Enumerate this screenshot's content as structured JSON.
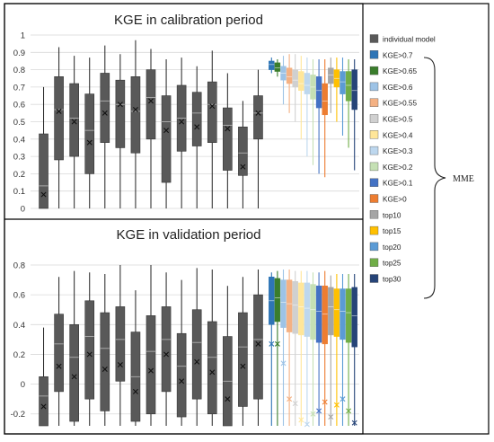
{
  "figure": {
    "side_bracket_label": "MME"
  },
  "legend": [
    {
      "label": "individual model",
      "color": "#595959"
    },
    {
      "label": "KGE>0.7",
      "color": "#2e75b6"
    },
    {
      "label": "KGE>0.65",
      "color": "#3a7d2c"
    },
    {
      "label": "KGE>0.6",
      "color": "#9dc3e6"
    },
    {
      "label": "KGE>0.55",
      "color": "#f4b183"
    },
    {
      "label": "KGE>0.5",
      "color": "#d0d0d0"
    },
    {
      "label": "KGE>0.4",
      "color": "#ffe699"
    },
    {
      "label": "KGE>0.3",
      "color": "#bdd7ee"
    },
    {
      "label": "KGE>0.2",
      "color": "#c5e0b4"
    },
    {
      "label": "KGE>0.1",
      "color": "#4472c4"
    },
    {
      "label": "KGE>0",
      "color": "#ed7d31"
    },
    {
      "label": "top10",
      "color": "#a5a5a5"
    },
    {
      "label": "top15",
      "color": "#ffc000"
    },
    {
      "label": "top20",
      "color": "#5b9bd5"
    },
    {
      "label": "top25",
      "color": "#70ad47"
    },
    {
      "label": "top30",
      "color": "#264478"
    }
  ],
  "chart_data": [
    {
      "type": "box",
      "title": "KGE in calibration period",
      "ylim": [
        0,
        1
      ],
      "yticks": [
        "0",
        "0.1",
        "0.2",
        "0.3",
        "0.4",
        "0.5",
        "0.6",
        "0.7",
        "0.8",
        "0.9",
        "1"
      ],
      "grid": true,
      "individual_models": [
        {
          "min": 0,
          "q1": 0,
          "median": 0.13,
          "q3": 0.43,
          "max": 0.7,
          "mean": 0.08
        },
        {
          "min": 0,
          "q1": 0.28,
          "median": 0.57,
          "q3": 0.76,
          "max": 0.93,
          "mean": 0.56
        },
        {
          "min": 0,
          "q1": 0.3,
          "median": 0.52,
          "q3": 0.72,
          "max": 0.88,
          "mean": 0.5
        },
        {
          "min": 0,
          "q1": 0.2,
          "median": 0.45,
          "q3": 0.66,
          "max": 0.87,
          "mean": 0.38
        },
        {
          "min": 0,
          "q1": 0.38,
          "median": 0.62,
          "q3": 0.78,
          "max": 0.94,
          "mean": 0.55
        },
        {
          "min": 0,
          "q1": 0.35,
          "median": 0.6,
          "q3": 0.74,
          "max": 0.89,
          "mean": 0.6
        },
        {
          "min": 0,
          "q1": 0.32,
          "median": 0.56,
          "q3": 0.76,
          "max": 0.97,
          "mean": 0.57
        },
        {
          "min": 0,
          "q1": 0.4,
          "median": 0.64,
          "q3": 0.8,
          "max": 0.92,
          "mean": 0.62
        },
        {
          "min": 0,
          "q1": 0.15,
          "median": 0.5,
          "q3": 0.65,
          "max": 0.86,
          "mean": 0.45
        },
        {
          "min": 0,
          "q1": 0.33,
          "median": 0.52,
          "q3": 0.71,
          "max": 0.87,
          "mean": 0.5
        },
        {
          "min": 0,
          "q1": 0.36,
          "median": 0.55,
          "q3": 0.67,
          "max": 0.82,
          "mean": 0.47
        },
        {
          "min": 0,
          "q1": 0.38,
          "median": 0.6,
          "q3": 0.73,
          "max": 0.91,
          "mean": 0.59
        },
        {
          "min": 0,
          "q1": 0.22,
          "median": 0.48,
          "q3": 0.58,
          "max": 0.78,
          "mean": 0.46
        },
        {
          "min": 0,
          "q1": 0.19,
          "median": 0.32,
          "q3": 0.47,
          "max": 0.62,
          "mean": 0.24
        },
        {
          "min": 0,
          "q1": 0.4,
          "median": 0.55,
          "q3": 0.65,
          "max": 0.8,
          "mean": 0.55
        }
      ],
      "mme_series": [
        {
          "name": "KGE>0.7",
          "min": 0.78,
          "q1": 0.8,
          "median": 0.83,
          "q3": 0.85,
          "max": 0.87
        },
        {
          "name": "KGE>0.65",
          "min": 0.76,
          "q1": 0.79,
          "median": 0.81,
          "q3": 0.84,
          "max": 0.86
        },
        {
          "name": "KGE>0.6",
          "min": 0.6,
          "q1": 0.74,
          "median": 0.78,
          "q3": 0.82,
          "max": 0.88
        },
        {
          "name": "KGE>0.55",
          "min": 0.55,
          "q1": 0.72,
          "median": 0.76,
          "q3": 0.81,
          "max": 0.89
        },
        {
          "name": "KGE>0.5",
          "min": 0.5,
          "q1": 0.7,
          "median": 0.74,
          "q3": 0.8,
          "max": 0.89
        },
        {
          "name": "KGE>0.4",
          "min": 0.4,
          "q1": 0.68,
          "median": 0.72,
          "q3": 0.79,
          "max": 0.88
        },
        {
          "name": "KGE>0.3",
          "min": 0.3,
          "q1": 0.66,
          "median": 0.71,
          "q3": 0.78,
          "max": 0.87
        },
        {
          "name": "KGE>0.2",
          "min": 0.25,
          "q1": 0.63,
          "median": 0.7,
          "q3": 0.77,
          "max": 0.86
        },
        {
          "name": "KGE>0.1",
          "min": 0.2,
          "q1": 0.58,
          "median": 0.68,
          "q3": 0.76,
          "max": 0.86
        },
        {
          "name": "KGE>0",
          "min": 0.18,
          "q1": 0.54,
          "median": 0.62,
          "q3": 0.72,
          "max": 0.86
        },
        {
          "name": "top10",
          "min": 0.55,
          "q1": 0.72,
          "median": 0.77,
          "q3": 0.81,
          "max": 0.87
        },
        {
          "name": "top15",
          "min": 0.5,
          "q1": 0.7,
          "median": 0.75,
          "q3": 0.8,
          "max": 0.87
        },
        {
          "name": "top20",
          "min": 0.42,
          "q1": 0.66,
          "median": 0.73,
          "q3": 0.79,
          "max": 0.87
        },
        {
          "name": "top25",
          "min": 0.35,
          "q1": 0.62,
          "median": 0.71,
          "q3": 0.79,
          "max": 0.86
        },
        {
          "name": "top30",
          "min": 0.22,
          "q1": 0.57,
          "median": 0.68,
          "q3": 0.8,
          "max": 0.86
        }
      ]
    },
    {
      "type": "box",
      "title": "KGE in validation period",
      "ylim": [
        -0.28,
        0.8
      ],
      "yticks": [
        "-0.2",
        "0",
        "0.2",
        "0.4",
        "0.6",
        "0.8"
      ],
      "grid": true,
      "individual_models": [
        {
          "min": -0.28,
          "q1": -0.28,
          "median": -0.08,
          "q3": 0.05,
          "max": 0.38,
          "mean": -0.15
        },
        {
          "min": -0.28,
          "q1": -0.05,
          "median": 0.27,
          "q3": 0.47,
          "max": 0.72,
          "mean": 0.12
        },
        {
          "min": -0.28,
          "q1": -0.25,
          "median": 0.18,
          "q3": 0.4,
          "max": 0.76,
          "mean": 0.05
        },
        {
          "min": -0.28,
          "q1": -0.1,
          "median": 0.32,
          "q3": 0.56,
          "max": 0.75,
          "mean": 0.2
        },
        {
          "min": -0.28,
          "q1": -0.18,
          "median": 0.24,
          "q3": 0.48,
          "max": 0.74,
          "mean": 0.1
        },
        {
          "min": -0.28,
          "q1": 0.02,
          "median": 0.3,
          "q3": 0.52,
          "max": 0.82,
          "mean": 0.13
        },
        {
          "min": -0.28,
          "q1": -0.25,
          "median": 0.05,
          "q3": 0.35,
          "max": 0.63,
          "mean": -0.05
        },
        {
          "min": -0.28,
          "q1": -0.2,
          "median": 0.22,
          "q3": 0.46,
          "max": 0.8,
          "mean": 0.09
        },
        {
          "min": -0.28,
          "q1": -0.05,
          "median": 0.3,
          "q3": 0.52,
          "max": 0.75,
          "mean": 0.2
        },
        {
          "min": -0.28,
          "q1": -0.22,
          "median": 0.12,
          "q3": 0.34,
          "max": 0.7,
          "mean": 0.02
        },
        {
          "min": -0.28,
          "q1": -0.1,
          "median": 0.28,
          "q3": 0.5,
          "max": 0.78,
          "mean": 0.15
        },
        {
          "min": -0.28,
          "q1": -0.2,
          "median": 0.18,
          "q3": 0.42,
          "max": 0.77,
          "mean": 0.08
        },
        {
          "min": -0.28,
          "q1": -0.28,
          "median": 0.02,
          "q3": 0.32,
          "max": 0.66,
          "mean": -0.1
        },
        {
          "min": -0.28,
          "q1": -0.15,
          "median": 0.25,
          "q3": 0.48,
          "max": 0.72,
          "mean": 0.12
        },
        {
          "min": -0.28,
          "q1": -0.1,
          "median": 0.3,
          "q3": 0.6,
          "max": 0.77,
          "mean": 0.27
        }
      ],
      "mme_series": [
        {
          "name": "KGE>0.7",
          "min": -0.28,
          "q1": 0.4,
          "median": 0.56,
          "q3": 0.72,
          "max": 0.75,
          "mean": 0.27
        },
        {
          "name": "KGE>0.65",
          "min": -0.28,
          "q1": 0.42,
          "median": 0.58,
          "q3": 0.71,
          "max": 0.76,
          "mean": 0.27
        },
        {
          "name": "KGE>0.6",
          "min": -0.28,
          "q1": 0.38,
          "median": 0.55,
          "q3": 0.7,
          "max": 0.77,
          "mean": 0.14
        },
        {
          "name": "KGE>0.55",
          "min": -0.28,
          "q1": 0.35,
          "median": 0.54,
          "q3": 0.7,
          "max": 0.77,
          "mean": -0.1
        },
        {
          "name": "KGE>0.5",
          "min": -0.28,
          "q1": 0.34,
          "median": 0.53,
          "q3": 0.69,
          "max": 0.76,
          "mean": -0.13
        },
        {
          "name": "KGE>0.4",
          "min": -0.28,
          "q1": 0.33,
          "median": 0.52,
          "q3": 0.68,
          "max": 0.76,
          "mean": -0.24
        },
        {
          "name": "KGE>0.3",
          "min": -0.28,
          "q1": 0.32,
          "median": 0.51,
          "q3": 0.68,
          "max": 0.76,
          "mean": -0.27
        },
        {
          "name": "KGE>0.2",
          "min": -0.28,
          "q1": 0.3,
          "median": 0.5,
          "q3": 0.67,
          "max": 0.75,
          "mean": -0.2
        },
        {
          "name": "KGE>0.1",
          "min": -0.28,
          "q1": 0.28,
          "median": 0.49,
          "q3": 0.66,
          "max": 0.75,
          "mean": -0.18
        },
        {
          "name": "KGE>0",
          "min": -0.28,
          "q1": 0.27,
          "median": 0.47,
          "q3": 0.66,
          "max": 0.76,
          "mean": -0.12
        },
        {
          "name": "top10",
          "min": -0.28,
          "q1": 0.33,
          "median": 0.52,
          "q3": 0.65,
          "max": 0.73,
          "mean": -0.22
        },
        {
          "name": "top15",
          "min": -0.28,
          "q1": 0.32,
          "median": 0.5,
          "q3": 0.64,
          "max": 0.74,
          "mean": -0.14
        },
        {
          "name": "top20",
          "min": -0.28,
          "q1": 0.3,
          "median": 0.49,
          "q3": 0.64,
          "max": 0.74,
          "mean": -0.1
        },
        {
          "name": "top25",
          "min": -0.28,
          "q1": 0.28,
          "median": 0.48,
          "q3": 0.64,
          "max": 0.74,
          "mean": -0.18
        },
        {
          "name": "top30",
          "min": -0.28,
          "q1": 0.25,
          "median": 0.46,
          "q3": 0.65,
          "max": 0.74,
          "mean": -0.26
        }
      ]
    }
  ]
}
